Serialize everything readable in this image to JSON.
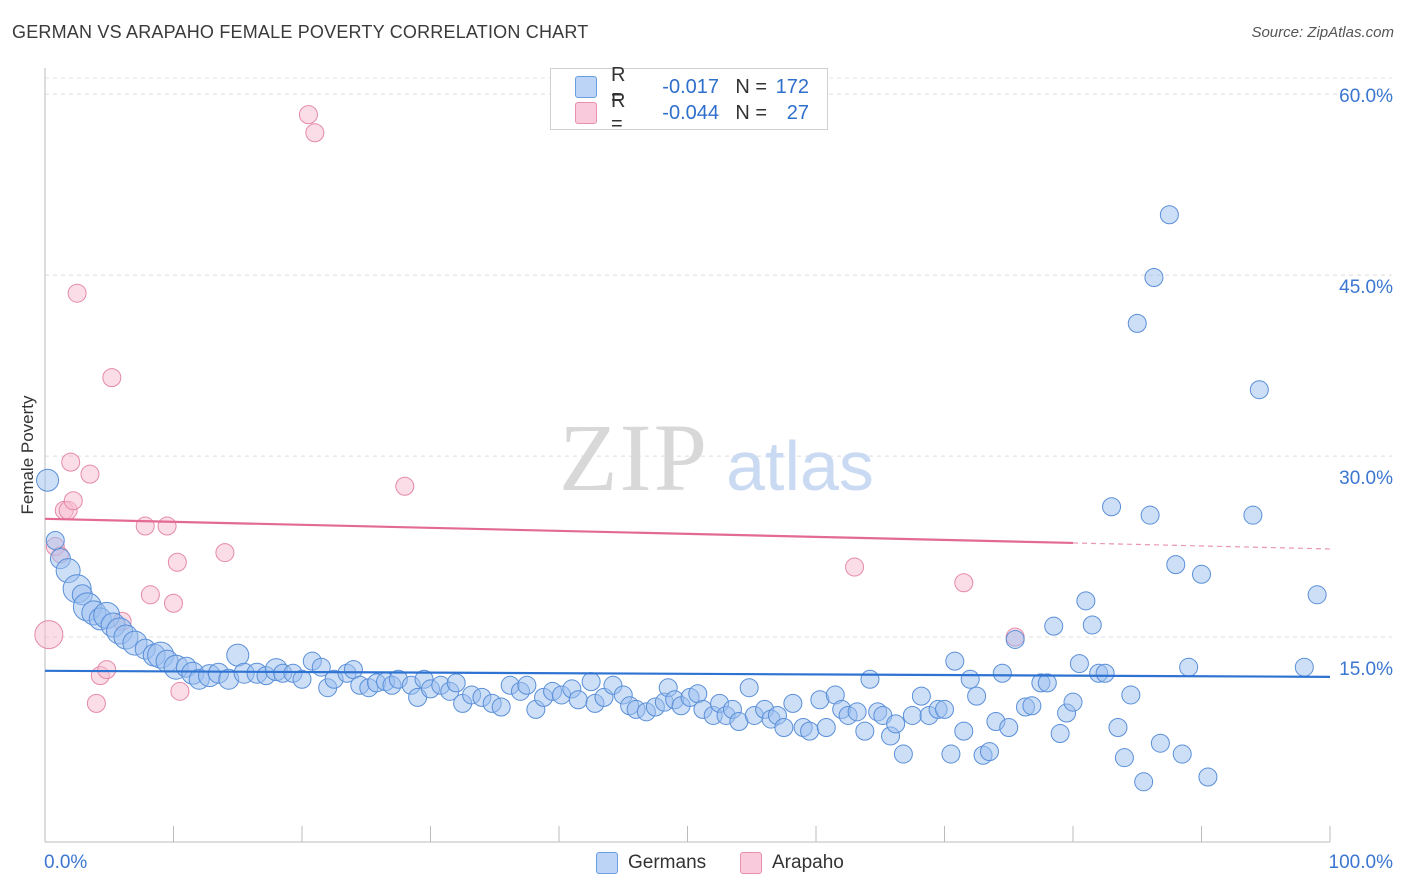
{
  "title": "GERMAN VS ARAPAHO FEMALE POVERTY CORRELATION CHART",
  "source": "Source: ZipAtlas.com",
  "watermark": {
    "zip": "ZIP",
    "atlas": "atlas"
  },
  "legend": {
    "r_label": "R =",
    "n_label": "N =",
    "germans": {
      "r": "-0.017",
      "n": "172",
      "color": "#a9c8f2"
    },
    "arapaho": {
      "r": "-0.044",
      "n": "27",
      "color": "#f5b8cb"
    }
  },
  "colors": {
    "germans_fill": "#9cc0ef",
    "germans_stroke": "#5a8fd8",
    "germans_line": "#2e72d2",
    "arapaho_fill": "#f7bcd0",
    "arapaho_stroke": "#e58aa8",
    "arapaho_line": "#e36a94",
    "tick_label": "#3b76d1"
  },
  "chart_data": {
    "type": "scatter",
    "title": "GERMAN VS ARAPAHO FEMALE POVERTY CORRELATION CHART",
    "xlabel": "",
    "ylabel": "Female Poverty",
    "xlim": [
      0,
      100
    ],
    "ylim": [
      0,
      62
    ],
    "x_tick_labels": [
      "0.0%",
      "100.0%"
    ],
    "y_ticks": [
      15,
      30,
      45,
      60
    ],
    "y_tick_labels": [
      "15.0%",
      "30.0%",
      "45.0%",
      "60.0%"
    ],
    "grid": true,
    "legend_position": "top-center",
    "series": [
      {
        "name": "Germans",
        "r": -0.017,
        "n": 172,
        "trend": {
          "x0": 0,
          "y0": 12.2,
          "x1": 100,
          "y1": 11.7
        },
        "points": [
          [
            0.2,
            28.0,
            11
          ],
          [
            0.8,
            23.0,
            9
          ],
          [
            1.2,
            21.5,
            10
          ],
          [
            1.8,
            20.5,
            12
          ],
          [
            2.5,
            19.0,
            14
          ],
          [
            2.9,
            18.5,
            10
          ],
          [
            3.3,
            17.5,
            14
          ],
          [
            3.8,
            17.0,
            12
          ],
          [
            4.3,
            16.5,
            11
          ],
          [
            4.8,
            16.8,
            13
          ],
          [
            5.3,
            16.0,
            12
          ],
          [
            5.8,
            15.5,
            13
          ],
          [
            6.3,
            15.0,
            12
          ],
          [
            7.0,
            14.5,
            12
          ],
          [
            7.8,
            14.0,
            10
          ],
          [
            8.5,
            13.5,
            11
          ],
          [
            9.0,
            13.5,
            13
          ],
          [
            9.5,
            13.0,
            11
          ],
          [
            10.2,
            12.5,
            12
          ],
          [
            11.0,
            12.5,
            10
          ],
          [
            11.5,
            12.0,
            11
          ],
          [
            12.0,
            11.5,
            10
          ],
          [
            12.8,
            11.8,
            11
          ],
          [
            13.5,
            12.0,
            10
          ],
          [
            14.3,
            11.5,
            10
          ],
          [
            15.0,
            13.5,
            11
          ],
          [
            15.5,
            12.0,
            10
          ],
          [
            16.5,
            12.0,
            10
          ],
          [
            17.2,
            11.8,
            9
          ],
          [
            18.0,
            12.3,
            11
          ],
          [
            18.5,
            12.0,
            9
          ],
          [
            19.3,
            12.0,
            9
          ],
          [
            20.0,
            11.5,
            9
          ],
          [
            20.8,
            13.0,
            9
          ],
          [
            21.5,
            12.5,
            9
          ],
          [
            22.0,
            10.8,
            9
          ],
          [
            22.5,
            11.5,
            9
          ],
          [
            23.5,
            12.0,
            9
          ],
          [
            24.0,
            12.3,
            9
          ],
          [
            24.5,
            11.0,
            9
          ],
          [
            25.2,
            10.8,
            9
          ],
          [
            25.8,
            11.2,
            9
          ],
          [
            26.5,
            11.3,
            9
          ],
          [
            27.0,
            11.0,
            9
          ],
          [
            27.5,
            11.5,
            9
          ],
          [
            28.5,
            11.0,
            9
          ],
          [
            29.0,
            10.0,
            9
          ],
          [
            29.5,
            11.5,
            9
          ],
          [
            30.0,
            10.7,
            9
          ],
          [
            30.8,
            11.0,
            9
          ],
          [
            31.5,
            10.5,
            9
          ],
          [
            32.0,
            11.2,
            9
          ],
          [
            32.5,
            9.5,
            9
          ],
          [
            33.2,
            10.2,
            9
          ],
          [
            34.0,
            10.0,
            9
          ],
          [
            34.8,
            9.5,
            9
          ],
          [
            35.5,
            9.2,
            9
          ],
          [
            36.2,
            11.0,
            9
          ],
          [
            37.0,
            10.5,
            9
          ],
          [
            37.5,
            11.0,
            9
          ],
          [
            38.2,
            9.0,
            9
          ],
          [
            38.8,
            10.0,
            9
          ],
          [
            39.5,
            10.5,
            9
          ],
          [
            40.2,
            10.2,
            9
          ],
          [
            41.0,
            10.7,
            9
          ],
          [
            41.5,
            9.8,
            9
          ],
          [
            42.5,
            11.3,
            9
          ],
          [
            42.8,
            9.5,
            9
          ],
          [
            43.5,
            10.0,
            9
          ],
          [
            44.2,
            11.0,
            9
          ],
          [
            45.0,
            10.2,
            9
          ],
          [
            45.5,
            9.3,
            9
          ],
          [
            46.0,
            9.0,
            9
          ],
          [
            46.8,
            8.8,
            9
          ],
          [
            47.5,
            9.2,
            9
          ],
          [
            48.2,
            9.6,
            9
          ],
          [
            48.5,
            10.8,
            9
          ],
          [
            49.0,
            9.8,
            9
          ],
          [
            49.5,
            9.3,
            9
          ],
          [
            50.2,
            10.0,
            9
          ],
          [
            50.8,
            10.3,
            9
          ],
          [
            51.2,
            9.0,
            9
          ],
          [
            52.0,
            8.5,
            9
          ],
          [
            52.5,
            9.5,
            9
          ],
          [
            53.0,
            8.5,
            9
          ],
          [
            53.5,
            9.0,
            9
          ],
          [
            54.0,
            8.0,
            9
          ],
          [
            54.8,
            10.8,
            9
          ],
          [
            55.2,
            8.5,
            9
          ],
          [
            56.0,
            9.0,
            9
          ],
          [
            56.5,
            8.2,
            9
          ],
          [
            57.0,
            8.5,
            9
          ],
          [
            57.5,
            7.5,
            9
          ],
          [
            58.2,
            9.5,
            9
          ],
          [
            59.0,
            7.5,
            9
          ],
          [
            59.5,
            7.2,
            9
          ],
          [
            60.3,
            9.8,
            9
          ],
          [
            60.8,
            7.5,
            9
          ],
          [
            61.5,
            10.2,
            9
          ],
          [
            62.0,
            9.0,
            9
          ],
          [
            62.5,
            8.5,
            9
          ],
          [
            63.2,
            8.8,
            9
          ],
          [
            63.8,
            7.2,
            9
          ],
          [
            64.2,
            11.5,
            9
          ],
          [
            64.8,
            8.8,
            9
          ],
          [
            65.2,
            8.5,
            9
          ],
          [
            65.8,
            6.8,
            9
          ],
          [
            66.2,
            7.8,
            9
          ],
          [
            66.8,
            5.3,
            9
          ],
          [
            67.5,
            8.5,
            9
          ],
          [
            68.2,
            10.1,
            9
          ],
          [
            68.8,
            8.5,
            9
          ],
          [
            69.5,
            9.0,
            9
          ],
          [
            70.0,
            9.0,
            9
          ],
          [
            70.5,
            5.3,
            9
          ],
          [
            70.8,
            13.0,
            9
          ],
          [
            71.5,
            7.2,
            9
          ],
          [
            72.0,
            11.5,
            9
          ],
          [
            72.5,
            10.1,
            9
          ],
          [
            73.0,
            5.2,
            9
          ],
          [
            73.5,
            5.5,
            9
          ],
          [
            74.0,
            8.0,
            9
          ],
          [
            74.5,
            12.0,
            9
          ],
          [
            75.0,
            7.5,
            9
          ],
          [
            75.5,
            14.8,
            9
          ],
          [
            76.3,
            9.2,
            9
          ],
          [
            76.8,
            9.3,
            9
          ],
          [
            77.5,
            11.2,
            9
          ],
          [
            78.0,
            11.2,
            9
          ],
          [
            78.5,
            15.9,
            9
          ],
          [
            79.0,
            7.0,
            9
          ],
          [
            79.5,
            8.7,
            9
          ],
          [
            80.0,
            9.6,
            9
          ],
          [
            80.5,
            12.8,
            9
          ],
          [
            81.0,
            18.0,
            9
          ],
          [
            81.5,
            16.0,
            9
          ],
          [
            82.0,
            12.0,
            9
          ],
          [
            82.5,
            12.0,
            9
          ],
          [
            83.0,
            25.8,
            9
          ],
          [
            83.5,
            7.5,
            9
          ],
          [
            84.0,
            5.0,
            9
          ],
          [
            84.5,
            10.2,
            9
          ],
          [
            85.0,
            41.0,
            9
          ],
          [
            85.5,
            3.0,
            9
          ],
          [
            86.0,
            25.1,
            9
          ],
          [
            86.3,
            44.8,
            9
          ],
          [
            86.8,
            6.2,
            9
          ],
          [
            87.5,
            50.0,
            9
          ],
          [
            88.0,
            21.0,
            9
          ],
          [
            88.5,
            5.3,
            9
          ],
          [
            89.0,
            12.5,
            9
          ],
          [
            90.0,
            20.2,
            9
          ],
          [
            90.5,
            3.4,
            9
          ],
          [
            94.0,
            25.1,
            9
          ],
          [
            94.5,
            35.5,
            9
          ],
          [
            98.0,
            12.5,
            9
          ],
          [
            99.0,
            18.5,
            9
          ]
        ]
      },
      {
        "name": "Arapaho",
        "r": -0.044,
        "n": 27,
        "trend": {
          "x0": 0,
          "y0": 24.8,
          "x1": 80,
          "y1": 22.8,
          "dash_to_x": 100,
          "dash_to_y": 22.3
        },
        "points": [
          [
            0.3,
            15.2,
            14
          ],
          [
            0.8,
            22.5,
            9
          ],
          [
            1.2,
            21.8,
            8
          ],
          [
            1.5,
            25.5,
            9
          ],
          [
            1.8,
            25.5,
            9
          ],
          [
            2.0,
            29.5,
            9
          ],
          [
            2.2,
            26.3,
            9
          ],
          [
            2.5,
            43.5,
            9
          ],
          [
            3.5,
            28.5,
            9
          ],
          [
            4.0,
            9.5,
            9
          ],
          [
            4.3,
            11.8,
            9
          ],
          [
            4.8,
            12.3,
            9
          ],
          [
            5.2,
            36.5,
            9
          ],
          [
            6.0,
            16.3,
            9
          ],
          [
            7.8,
            24.2,
            9
          ],
          [
            8.2,
            18.5,
            9
          ],
          [
            9.5,
            24.2,
            9
          ],
          [
            10.0,
            17.8,
            9
          ],
          [
            10.3,
            21.2,
            9
          ],
          [
            10.5,
            10.5,
            9
          ],
          [
            14.0,
            22.0,
            9
          ],
          [
            20.5,
            58.3,
            9
          ],
          [
            21.0,
            56.8,
            9
          ],
          [
            28.0,
            27.5,
            9
          ],
          [
            63.0,
            20.8,
            9
          ],
          [
            71.5,
            19.5,
            9
          ],
          [
            75.5,
            15.0,
            9
          ]
        ]
      }
    ]
  },
  "bottom_legend": {
    "germans": "Germans",
    "arapaho": "Arapaho"
  }
}
